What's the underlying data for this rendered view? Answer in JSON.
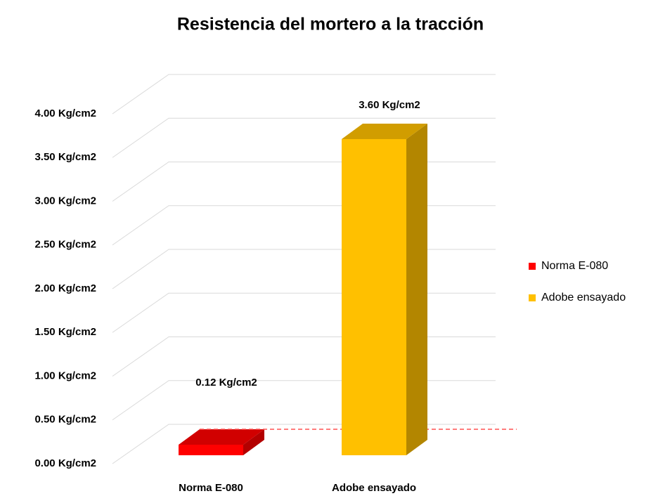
{
  "chart_data": {
    "type": "bar",
    "title": "Resistencia del mortero a la tracción",
    "categories": [
      "Norma E-080",
      "Adobe ensayado"
    ],
    "series": [
      {
        "name": "Norma E-080",
        "color": "#ff0000",
        "values": [
          0.12,
          null
        ],
        "value_labels": [
          "0.12 Kg/cm2",
          null
        ]
      },
      {
        "name": "Adobe ensayado",
        "color": "#ffc000",
        "values": [
          null,
          3.6
        ],
        "value_labels": [
          null,
          "3.60 Kg/cm2"
        ]
      }
    ],
    "ylim": [
      0,
      4
    ],
    "yticks": [
      {
        "value": 0,
        "label": "0.00 Kg/cm2"
      },
      {
        "value": 0.5,
        "label": "0.50 Kg/cm2"
      },
      {
        "value": 1,
        "label": "1.00 Kg/cm2"
      },
      {
        "value": 1.5,
        "label": "1.50 Kg/cm2"
      },
      {
        "value": 2,
        "label": "2.00 Kg/cm2"
      },
      {
        "value": 2.5,
        "label": "2.50 Kg/cm2"
      },
      {
        "value": 3,
        "label": "3.00 Kg/cm2"
      },
      {
        "value": 3.5,
        "label": "3.50 Kg/cm2"
      },
      {
        "value": 4,
        "label": "4.00 Kg/cm2"
      }
    ],
    "grid": true,
    "legend": "right"
  }
}
